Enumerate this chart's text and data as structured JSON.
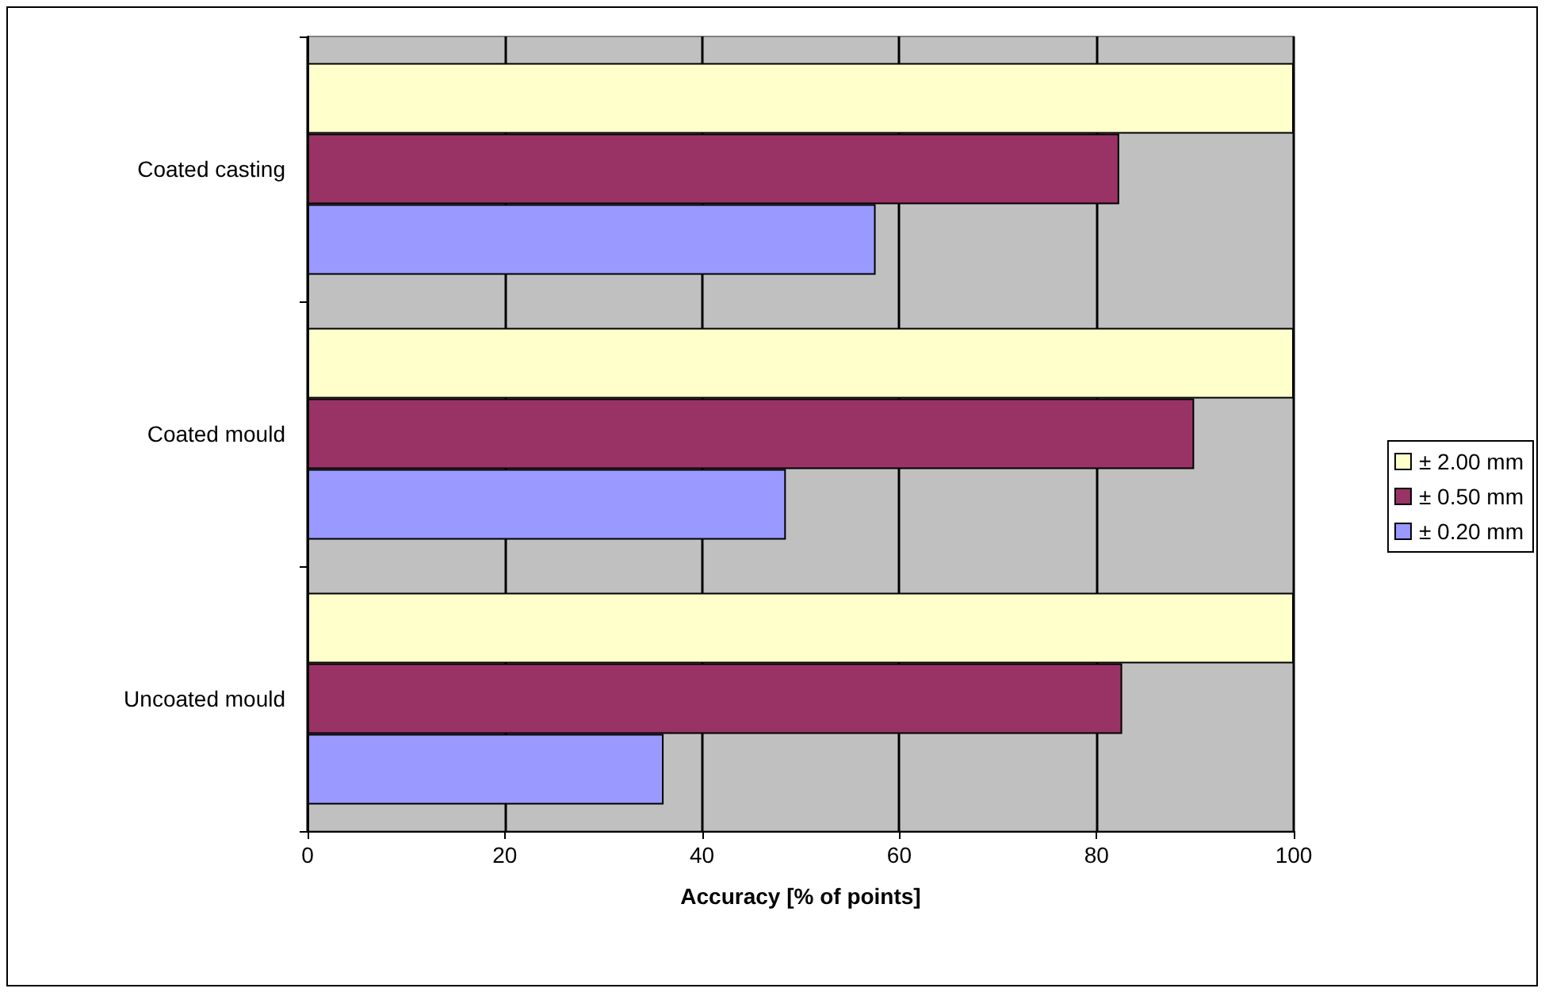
{
  "chart_data": {
    "type": "bar",
    "orientation": "horizontal",
    "xlabel": "Accuracy [% of points]",
    "categories": [
      "Coated casting",
      "Coated mould",
      "Uncoated mould"
    ],
    "series": [
      {
        "name": "± 2.00 mm",
        "color": "#ffffcc",
        "values": [
          100,
          100,
          100
        ]
      },
      {
        "name": "± 0.50 mm",
        "color": "#993366",
        "values": [
          82.3,
          89.9,
          82.6
        ]
      },
      {
        "name": "± 0.20 mm",
        "color": "#9999ff",
        "values": [
          57.6,
          48.5,
          36.1
        ]
      }
    ],
    "xlim": [
      0,
      100
    ],
    "xticks": [
      0,
      20,
      40,
      60,
      80,
      100
    ],
    "grid": "x",
    "legend": "right"
  }
}
